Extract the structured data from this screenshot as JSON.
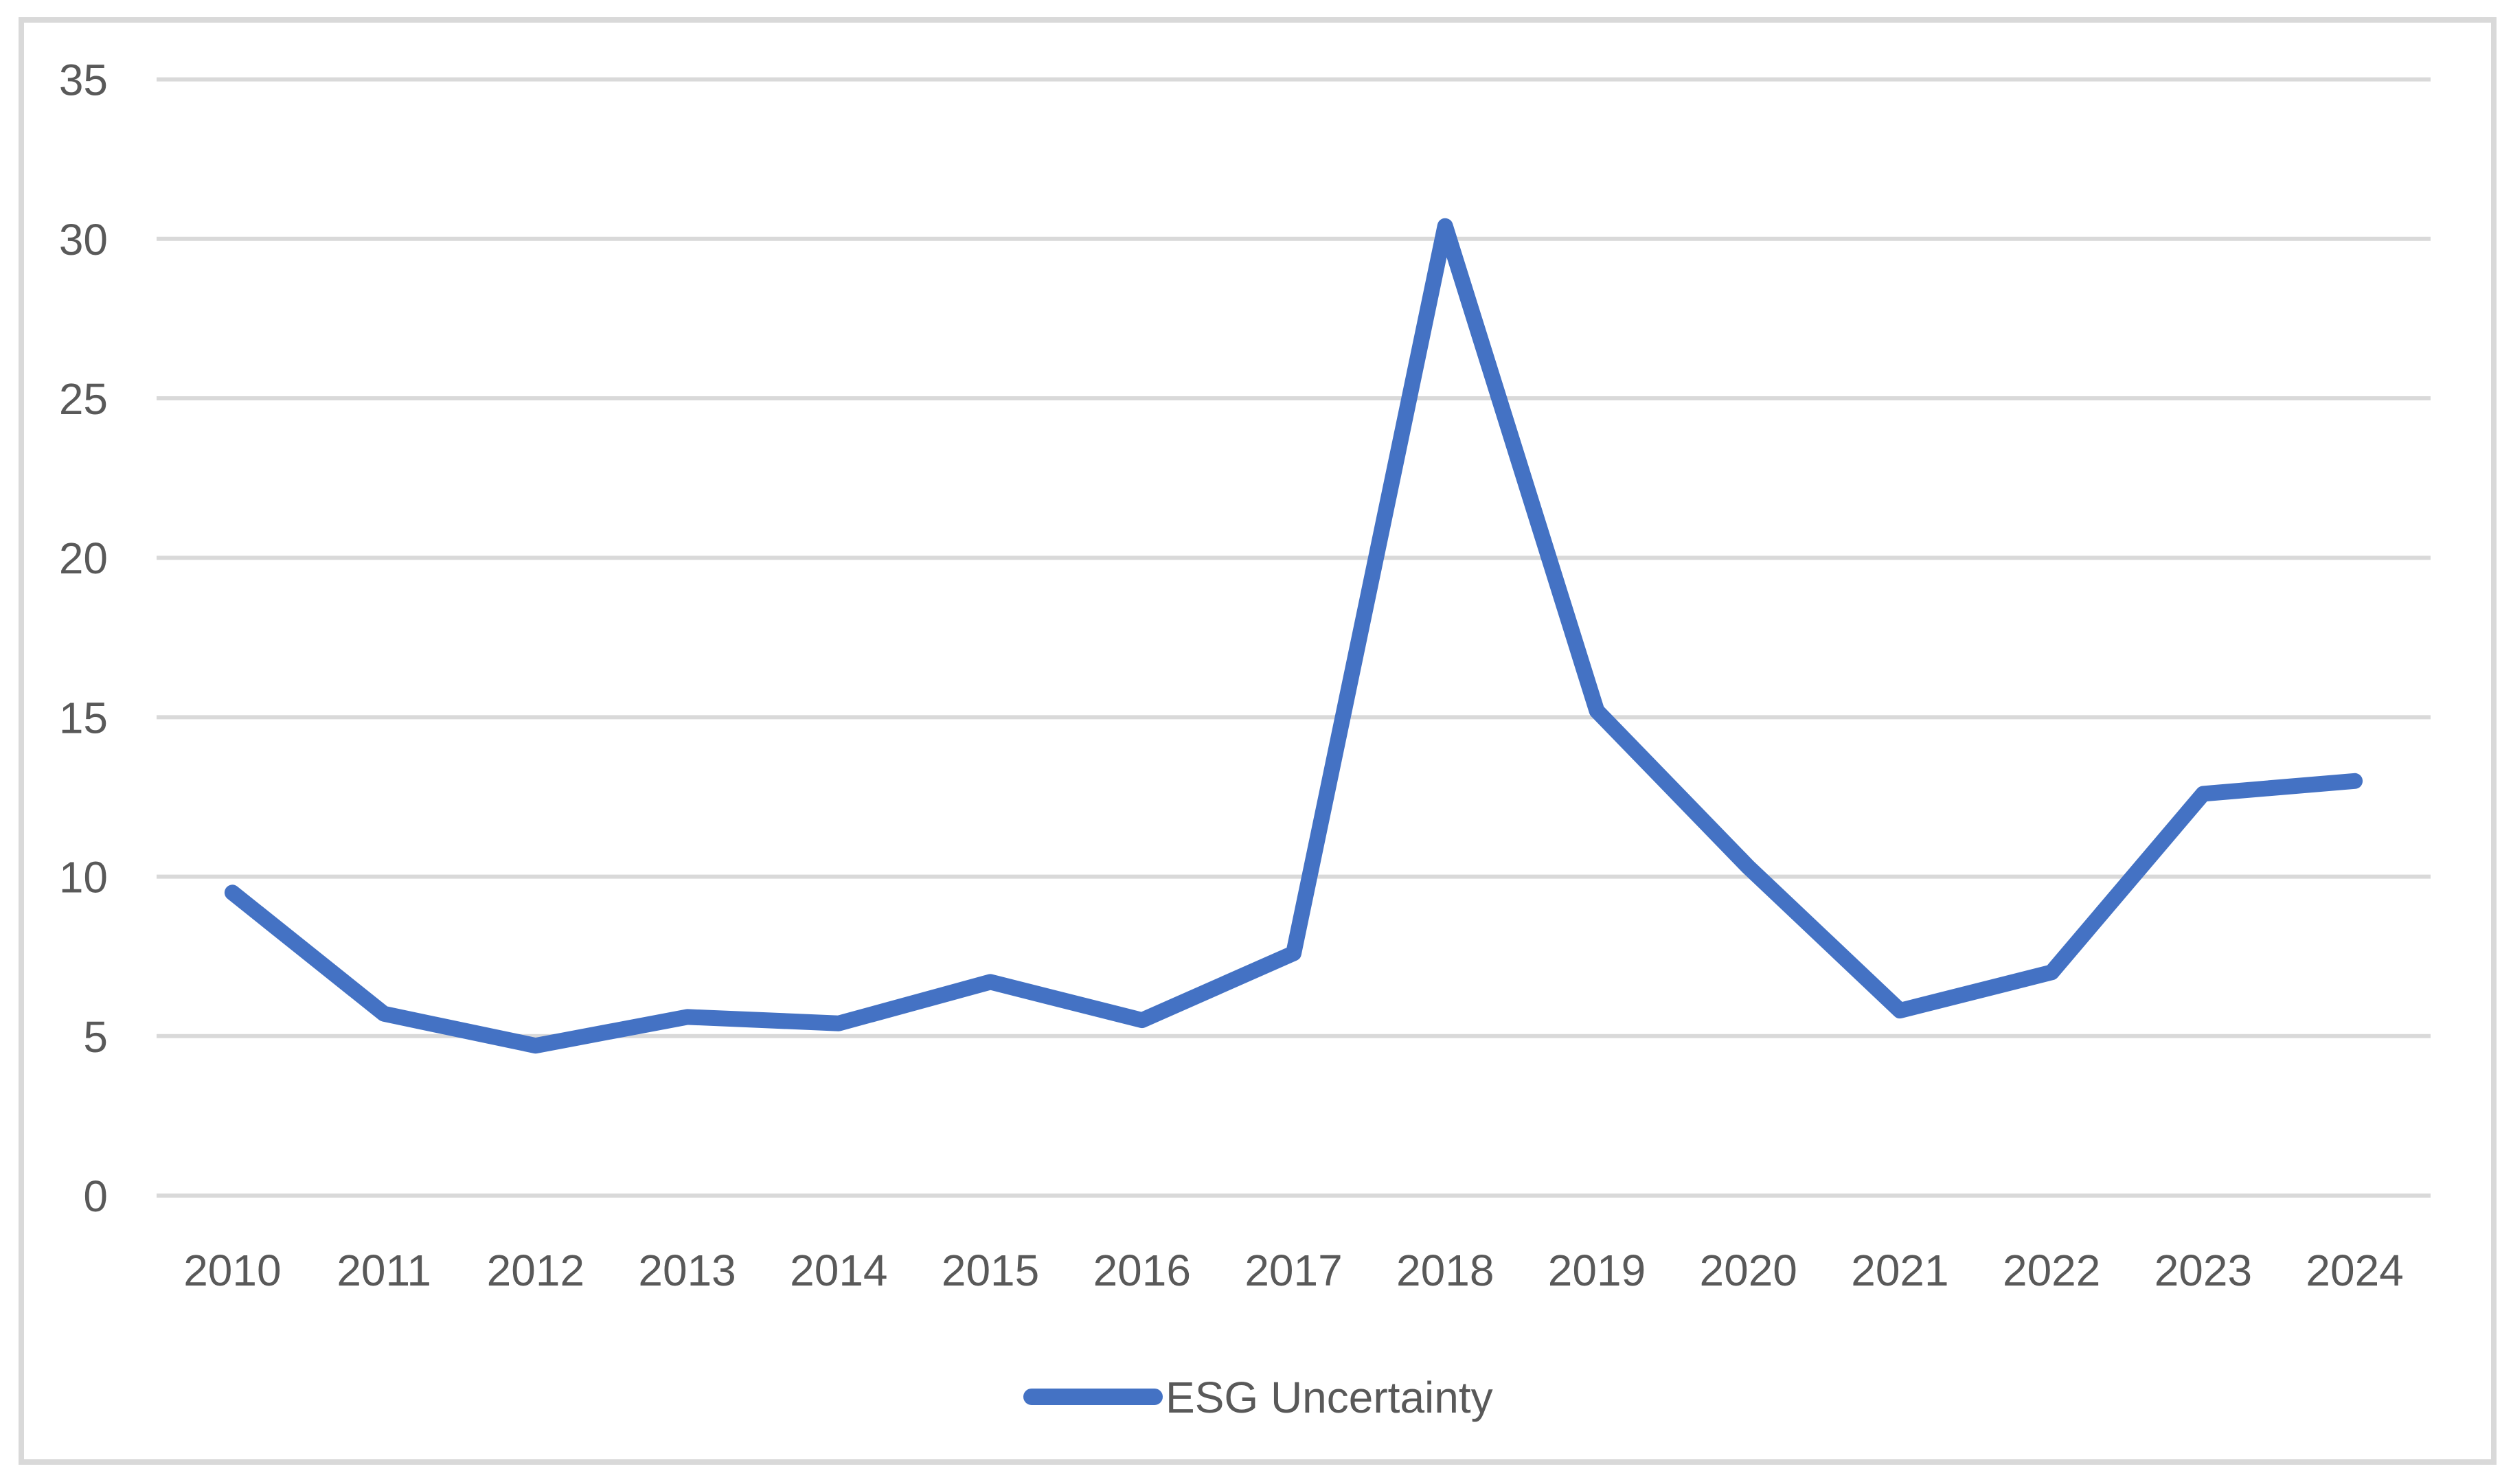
{
  "chart_data": {
    "type": "line",
    "title": "",
    "xlabel": "",
    "ylabel": "",
    "categories": [
      "2010",
      "2011",
      "2012",
      "2013",
      "2014",
      "2015",
      "2016",
      "2017",
      "2018",
      "2019",
      "2020",
      "2021",
      "2022",
      "2023",
      "2024"
    ],
    "series": [
      {
        "name": "ESG Uncertainty",
        "color": "#4472C4",
        "values": [
          9.5,
          5.7,
          4.7,
          5.6,
          5.4,
          6.7,
          5.5,
          7.6,
          30.4,
          15.2,
          10.3,
          5.8,
          7.0,
          12.6,
          13.0
        ]
      }
    ],
    "ylim": [
      0,
      35
    ],
    "yticks": [
      0,
      5,
      10,
      15,
      20,
      25,
      30,
      35
    ],
    "grid": true,
    "legend_position": "bottom-center",
    "colors": {
      "line": "#4472C4",
      "gridline": "#D9D9D9",
      "frame_border": "#D9D9D9",
      "axis_text": "#595959",
      "background": "#FFFFFF"
    }
  },
  "legend": {
    "label": "ESG Uncertainty"
  }
}
